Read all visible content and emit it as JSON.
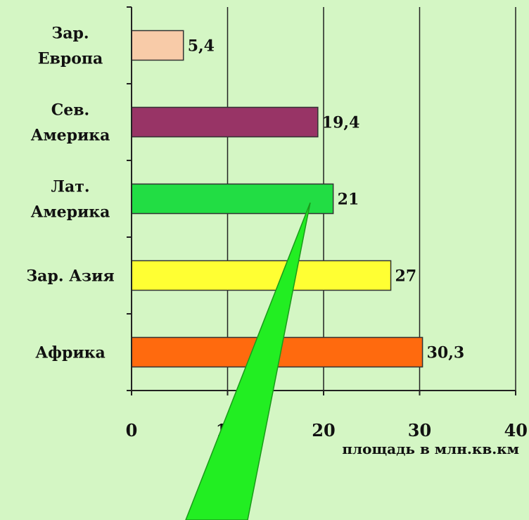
{
  "chart_data": {
    "type": "bar",
    "orientation": "horizontal",
    "categories": [
      [
        "Зар.",
        "Европа"
      ],
      [
        "Сев.",
        "Америка"
      ],
      [
        "Лат.",
        "Америка"
      ],
      [
        "Зар. Азия"
      ],
      [
        "Африка"
      ]
    ],
    "values": [
      5.4,
      19.4,
      21,
      27,
      30.3
    ],
    "value_labels": [
      "5,4",
      "19,4",
      "21",
      "27",
      "30,3"
    ],
    "bar_colors": [
      "#f8cba8",
      "#983466",
      "#22dd44",
      "#ffff33",
      "#ff6a0e"
    ],
    "xlabel": "площадь в млн.кв.км",
    "xlim": [
      0,
      40
    ],
    "xticks": [
      0,
      10,
      20,
      30,
      40
    ],
    "xtick_labels": [
      "0",
      "10",
      "20",
      "30",
      "40"
    ],
    "grid": "vertical",
    "callout_color": "#22ee22"
  }
}
